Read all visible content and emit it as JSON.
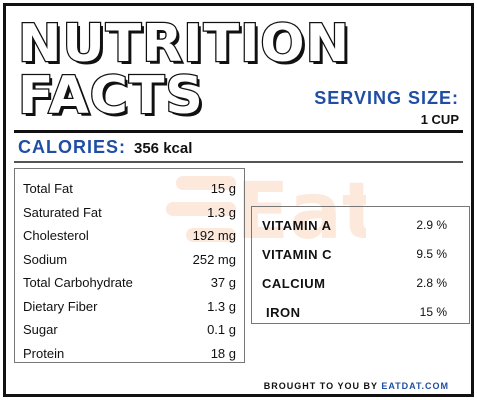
{
  "title": {
    "line1": "NUTRITION",
    "line2": "FACTS"
  },
  "serving": {
    "label": "SERVING SIZE:",
    "value": "1 CUP"
  },
  "calories": {
    "label": "CALORIES:",
    "value": "356 kcal"
  },
  "nutrients": [
    {
      "name": "Total Fat",
      "amount": "15 g"
    },
    {
      "name": "Saturated Fat",
      "amount": "1.3 g"
    },
    {
      "name": "Cholesterol",
      "amount": "192 mg"
    },
    {
      "name": "Sodium",
      "amount": "252 mg"
    },
    {
      "name": "Total Carbohydrate",
      "amount": "37 g"
    },
    {
      "name": "Dietary Fiber",
      "amount": "1.3 g"
    },
    {
      "name": "Sugar",
      "amount": "0.1 g"
    },
    {
      "name": "Protein",
      "amount": "18 g"
    }
  ],
  "vitamins": [
    {
      "name": "VITAMIN A",
      "amount": "2.9 %"
    },
    {
      "name": "VITAMIN C",
      "amount": "9.5 %"
    },
    {
      "name": "CALCIUM",
      "amount": "2.8 %"
    },
    {
      "name": "IRON",
      "amount": "15 %"
    }
  ],
  "footer": {
    "text": "BROUGHT TO YOU BY",
    "brand": "EATDAT.COM"
  },
  "watermark": {
    "text": "Eat dat"
  },
  "colors": {
    "accent": "#1f4ea3",
    "watermark": "#f08a3c",
    "text": "#111111"
  }
}
